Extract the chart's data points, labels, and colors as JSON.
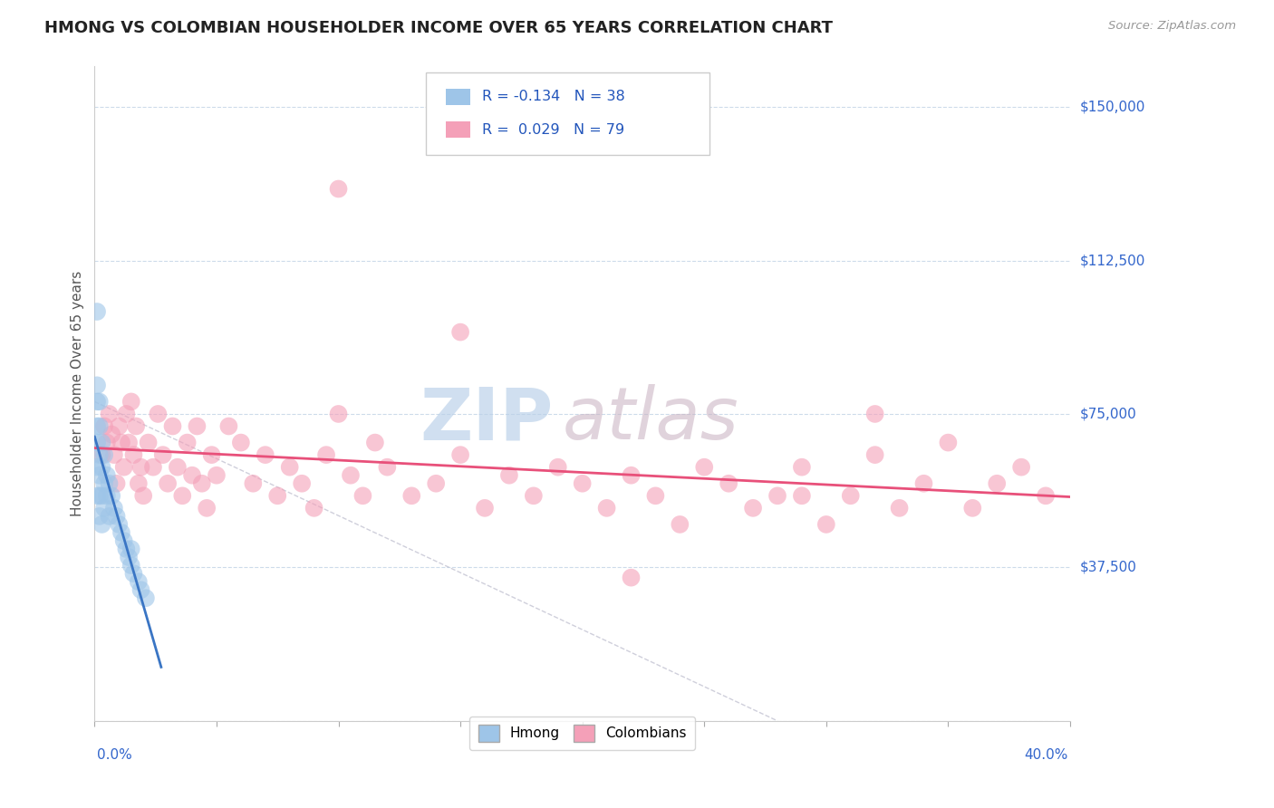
{
  "title": "HMONG VS COLOMBIAN HOUSEHOLDER INCOME OVER 65 YEARS CORRELATION CHART",
  "source": "Source: ZipAtlas.com",
  "ylabel": "Householder Income Over 65 years",
  "xlim": [
    0.0,
    0.4
  ],
  "ylim": [
    0,
    160000
  ],
  "yticks": [
    0,
    37500,
    75000,
    112500,
    150000
  ],
  "ytick_labels": [
    "",
    "$37,500",
    "$75,000",
    "$112,500",
    "$150,000"
  ],
  "legend_r_hmong": "-0.134",
  "legend_n_hmong": "38",
  "legend_r_colombian": "0.029",
  "legend_n_colombian": "79",
  "hmong_color": "#9ec5e8",
  "colombian_color": "#f4a0b8",
  "hmong_line_color": "#3a75c4",
  "colombian_line_color": "#e8507a",
  "watermark_color": "#d0e4f0",
  "background_color": "#ffffff",
  "grid_color": "#c8d8e8",
  "hmong_x": [
    0.001,
    0.001,
    0.001,
    0.001,
    0.001,
    0.001,
    0.001,
    0.002,
    0.002,
    0.002,
    0.002,
    0.002,
    0.002,
    0.003,
    0.003,
    0.003,
    0.003,
    0.004,
    0.004,
    0.004,
    0.005,
    0.005,
    0.006,
    0.006,
    0.007,
    0.008,
    0.009,
    0.01,
    0.011,
    0.012,
    0.013,
    0.014,
    0.015,
    0.015,
    0.016,
    0.018,
    0.019,
    0.021
  ],
  "hmong_y": [
    100000,
    82000,
    78000,
    72000,
    68000,
    62000,
    55000,
    78000,
    72000,
    65000,
    60000,
    55000,
    50000,
    68000,
    62000,
    55000,
    48000,
    65000,
    58000,
    52000,
    60000,
    55000,
    58000,
    50000,
    55000,
    52000,
    50000,
    48000,
    46000,
    44000,
    42000,
    40000,
    42000,
    38000,
    36000,
    34000,
    32000,
    30000
  ],
  "colombian_x": [
    0.003,
    0.004,
    0.005,
    0.006,
    0.007,
    0.008,
    0.009,
    0.01,
    0.011,
    0.012,
    0.013,
    0.014,
    0.015,
    0.016,
    0.017,
    0.018,
    0.019,
    0.02,
    0.022,
    0.024,
    0.026,
    0.028,
    0.03,
    0.032,
    0.034,
    0.036,
    0.038,
    0.04,
    0.042,
    0.044,
    0.046,
    0.048,
    0.05,
    0.055,
    0.06,
    0.065,
    0.07,
    0.075,
    0.08,
    0.085,
    0.09,
    0.095,
    0.1,
    0.105,
    0.11,
    0.115,
    0.12,
    0.13,
    0.14,
    0.15,
    0.16,
    0.17,
    0.18,
    0.19,
    0.2,
    0.21,
    0.22,
    0.23,
    0.24,
    0.25,
    0.26,
    0.27,
    0.28,
    0.29,
    0.3,
    0.31,
    0.32,
    0.33,
    0.34,
    0.35,
    0.36,
    0.37,
    0.38,
    0.39,
    0.1,
    0.15,
    0.22,
    0.29,
    0.32
  ],
  "colombian_y": [
    65000,
    72000,
    68000,
    75000,
    70000,
    65000,
    58000,
    72000,
    68000,
    62000,
    75000,
    68000,
    78000,
    65000,
    72000,
    58000,
    62000,
    55000,
    68000,
    62000,
    75000,
    65000,
    58000,
    72000,
    62000,
    55000,
    68000,
    60000,
    72000,
    58000,
    52000,
    65000,
    60000,
    72000,
    68000,
    58000,
    65000,
    55000,
    62000,
    58000,
    52000,
    65000,
    75000,
    60000,
    55000,
    68000,
    62000,
    55000,
    58000,
    65000,
    52000,
    60000,
    55000,
    62000,
    58000,
    52000,
    60000,
    55000,
    48000,
    62000,
    58000,
    52000,
    55000,
    62000,
    48000,
    55000,
    65000,
    52000,
    58000,
    68000,
    52000,
    58000,
    62000,
    55000,
    130000,
    95000,
    35000,
    55000,
    75000
  ]
}
